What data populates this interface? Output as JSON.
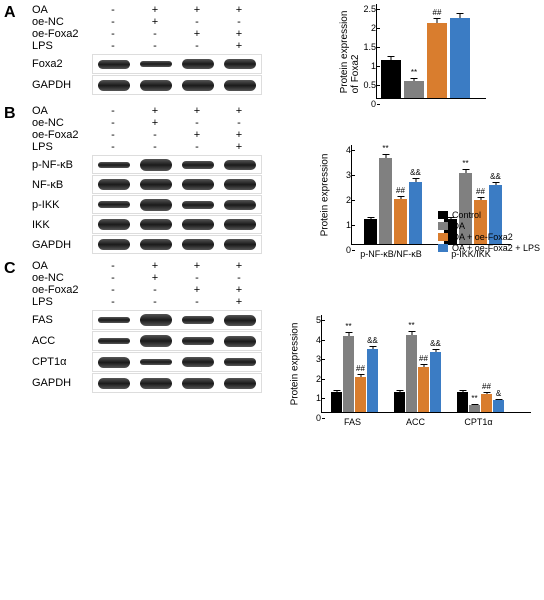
{
  "colors": {
    "control": "#000000",
    "oa": "#808080",
    "oa_foxa2": "#d97d2e",
    "oa_foxa2_lps": "#3b7cc4"
  },
  "legend": [
    "Control",
    "OA",
    "OA + oe-Foxa2",
    "OA + oe-Foxa2 + LPS"
  ],
  "conditions": {
    "labels": [
      "OA",
      "oe-NC",
      "oe-Foxa2",
      "LPS"
    ],
    "cols": [
      [
        "-",
        "-",
        "-",
        "-"
      ],
      [
        "+",
        "+",
        "-",
        "-"
      ],
      [
        "+",
        "-",
        "+",
        "-"
      ],
      [
        "+",
        "-",
        "+",
        "+"
      ]
    ]
  },
  "panelA": {
    "label": "A",
    "blots": [
      {
        "name": "Foxa2",
        "heights": [
          9,
          6,
          10,
          10
        ],
        "bg": "#9a9a9a"
      },
      {
        "name": "GAPDH",
        "heights": [
          11,
          11,
          11,
          11
        ],
        "bg": "#6a6a6a"
      }
    ],
    "chart": {
      "ylabel": "Protein expression\nof Foxa2",
      "ymax": 2.5,
      "ystep": 0.5,
      "values": [
        1.0,
        0.45,
        1.98,
        2.1
      ],
      "errors": [
        0.1,
        0.07,
        0.12,
        0.15
      ],
      "sigs": [
        "",
        "**",
        "##",
        ""
      ]
    }
  },
  "panelB": {
    "label": "B",
    "blots": [
      {
        "name": "p-NF-κB",
        "heights": [
          6,
          12,
          8,
          10
        ],
        "bg": "#8a8a8a"
      },
      {
        "name": "NF-κB",
        "heights": [
          11,
          11,
          11,
          11
        ],
        "bg": "#707070"
      },
      {
        "name": "p-IKK",
        "heights": [
          7,
          12,
          8,
          10
        ],
        "bg": "#8a8a8a"
      },
      {
        "name": "IKK",
        "heights": [
          11,
          11,
          11,
          11
        ],
        "bg": "#707070"
      },
      {
        "name": "GAPDH",
        "heights": [
          11,
          11,
          11,
          11
        ],
        "bg": "#6a6a6a"
      }
    ],
    "chart": {
      "ylabel": "Protein expression",
      "ymax": 4,
      "ystep": 1,
      "groups": [
        "p-NF-κB/NF-κB",
        "p-IKK/IKK"
      ],
      "values": [
        [
          1.0,
          3.45,
          1.8,
          2.5
        ],
        [
          1.0,
          2.85,
          1.78,
          2.35
        ]
      ],
      "errors": [
        [
          0.1,
          0.15,
          0.12,
          0.15
        ],
        [
          0.1,
          0.15,
          0.12,
          0.15
        ]
      ],
      "sigs": [
        [
          "",
          "**",
          "##",
          "&&"
        ],
        [
          "",
          "**",
          "##",
          "&&"
        ]
      ]
    }
  },
  "panelC": {
    "label": "C",
    "blots": [
      {
        "name": "FAS",
        "heights": [
          6,
          12,
          8,
          11
        ],
        "bg": "#8a8a8a"
      },
      {
        "name": "ACC",
        "heights": [
          6,
          12,
          8,
          11
        ],
        "bg": "#8a8a8a"
      },
      {
        "name": "CPT1α",
        "heights": [
          11,
          6,
          10,
          8
        ],
        "bg": "#8a8a8a"
      },
      {
        "name": "GAPDH",
        "heights": [
          11,
          11,
          11,
          11
        ],
        "bg": "#6a6a6a"
      }
    ],
    "chart": {
      "ylabel": "Protein expression",
      "ymax": 5,
      "ystep": 1,
      "groups": [
        "FAS",
        "ACC",
        "CPT1α"
      ],
      "values": [
        [
          1.0,
          3.9,
          1.8,
          3.2
        ],
        [
          1.0,
          3.95,
          2.3,
          3.05
        ],
        [
          1.0,
          0.35,
          0.9,
          0.6
        ]
      ],
      "errors": [
        [
          0.12,
          0.2,
          0.15,
          0.18
        ],
        [
          0.12,
          0.2,
          0.15,
          0.18
        ],
        [
          0.1,
          0.06,
          0.1,
          0.08
        ]
      ],
      "sigs": [
        [
          "",
          "**",
          "##",
          "&&"
        ],
        [
          "",
          "**",
          "##",
          "&&"
        ],
        [
          "",
          "**",
          "##",
          "&"
        ]
      ]
    }
  }
}
